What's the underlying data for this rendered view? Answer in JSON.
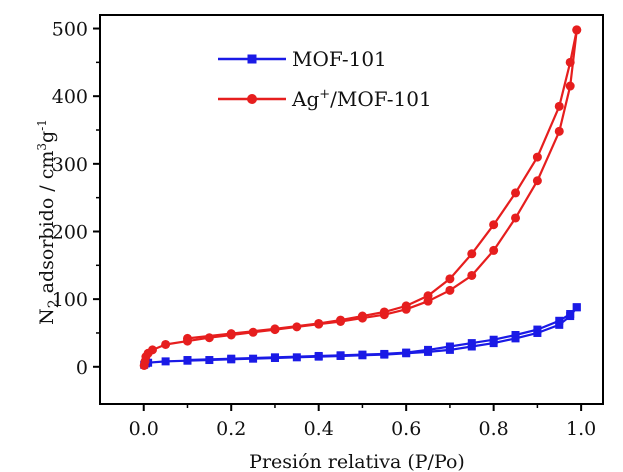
{
  "chart_data": {
    "type": "line",
    "xlabel": "Presión relativa (P/Po)",
    "ylabel_parts": {
      "n": "N",
      "sub": "2",
      "mid": " adsorbido / cm",
      "sup3": "3",
      "g": "g",
      "supneg1": "-1"
    },
    "xlim": [
      -0.1,
      1.05
    ],
    "ylim": [
      -55,
      520
    ],
    "xticks": [
      0.0,
      0.2,
      0.4,
      0.6,
      0.8,
      1.0
    ],
    "xtick_labels": [
      "0.0",
      "0.2",
      "0.4",
      "0.6",
      "0.8",
      "1.0"
    ],
    "yticks": [
      0,
      100,
      200,
      300,
      400,
      500
    ],
    "ytick_labels": [
      "0",
      "100",
      "200",
      "300",
      "400",
      "500"
    ],
    "grid": false,
    "legend_position": "top-left",
    "series": [
      {
        "name": "MOF-101",
        "legend_label": "MOF-101",
        "color": "#1a1ae6",
        "marker": "square",
        "adsorption": {
          "x": [
            0.001,
            0.005,
            0.01,
            0.05,
            0.1,
            0.15,
            0.2,
            0.25,
            0.3,
            0.35,
            0.4,
            0.45,
            0.5,
            0.55,
            0.6,
            0.65,
            0.7,
            0.75,
            0.8,
            0.85,
            0.9,
            0.95,
            0.975,
            0.99
          ],
          "y": [
            3,
            5,
            6,
            8,
            9,
            10,
            11,
            12,
            13,
            14,
            15,
            16,
            17,
            18,
            20,
            22,
            25,
            30,
            35,
            42,
            50,
            62,
            75,
            88
          ]
        },
        "desorption": {
          "x": [
            0.99,
            0.975,
            0.95,
            0.9,
            0.85,
            0.8,
            0.75,
            0.7,
            0.65,
            0.6,
            0.55,
            0.5,
            0.45,
            0.4,
            0.3,
            0.2,
            0.1
          ],
          "y": [
            88,
            78,
            68,
            55,
            47,
            40,
            35,
            30,
            25,
            21,
            19,
            18,
            17,
            16,
            14,
            12,
            10
          ]
        }
      },
      {
        "name": "Ag+/MOF-101",
        "legend_label_parts": {
          "a": "Ag",
          "sup": "+",
          "b": "/MOF-101"
        },
        "color": "#e61e1e",
        "marker": "circle",
        "adsorption": {
          "x": [
            0.001,
            0.003,
            0.005,
            0.01,
            0.02,
            0.05,
            0.1,
            0.15,
            0.2,
            0.25,
            0.3,
            0.35,
            0.4,
            0.45,
            0.5,
            0.55,
            0.6,
            0.65,
            0.7,
            0.75,
            0.8,
            0.85,
            0.9,
            0.95,
            0.975,
            0.99
          ],
          "y": [
            2,
            8,
            15,
            20,
            25,
            33,
            38,
            43,
            47,
            51,
            55,
            59,
            63,
            67,
            72,
            77,
            85,
            97,
            113,
            135,
            172,
            220,
            275,
            348,
            415,
            498
          ]
        },
        "desorption": {
          "x": [
            0.99,
            0.975,
            0.95,
            0.9,
            0.85,
            0.8,
            0.75,
            0.7,
            0.65,
            0.6,
            0.55,
            0.5,
            0.45,
            0.4,
            0.3,
            0.2,
            0.1
          ],
          "y": [
            498,
            450,
            385,
            310,
            257,
            210,
            167,
            130,
            105,
            90,
            81,
            75,
            69,
            64,
            56,
            49,
            42
          ]
        }
      }
    ]
  }
}
